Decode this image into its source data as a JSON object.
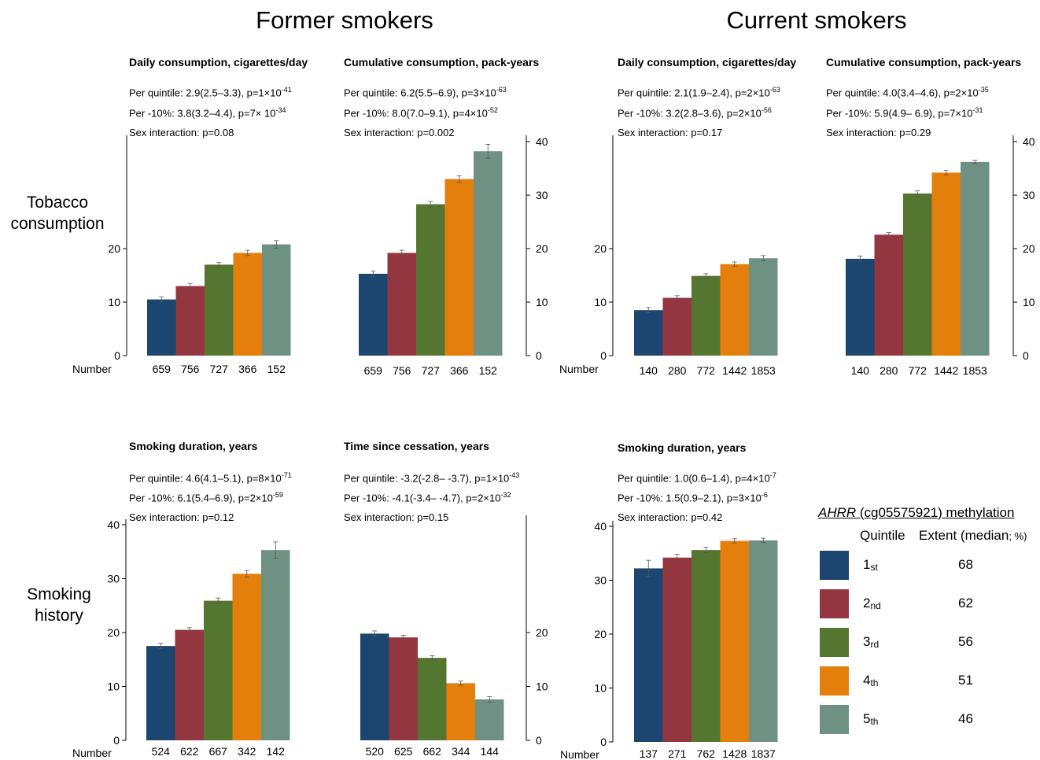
{
  "titles": {
    "former": "Former smokers",
    "current": "Current smokers"
  },
  "row_labels": {
    "tobacco": [
      "Tobacco",
      "consumption"
    ],
    "history": [
      "Smoking",
      "history"
    ]
  },
  "number_label": "Number",
  "colors": {
    "q1": "#1c4670",
    "q2": "#943640",
    "q3": "#557630",
    "q4": "#e47f0c",
    "q5": "#6f9184"
  },
  "panels": [
    {
      "id": "p1",
      "title": "Daily consumption, cigarettes/day",
      "stats": {
        "quintile": "Per quintile: 2.9(2.5–3.3), p=1×10",
        "quintile_exp": "-41",
        "pct": "Per -10%: 3.8(3.2–4.4), p=7× 10",
        "pct_exp": "-34",
        "sex": "Sex interaction: p=0.08"
      }
    },
    {
      "id": "p2",
      "title": "Cumulative consumption, pack-years",
      "stats": {
        "quintile": "Per quintile: 6.2(5.5–6.9), p=3×10",
        "quintile_exp": "-63",
        "pct": "Per -10%: 8.0(7.0–9.1), p=4×10",
        "pct_exp": "-52",
        "sex": "Sex interaction: p=0.002"
      }
    },
    {
      "id": "p3",
      "title": "Daily consumption, cigarettes/day",
      "stats": {
        "quintile": "Per quintile: 2.1(1.9–2.4), p=2×10",
        "quintile_exp": "-63",
        "pct": "Per -10%: 3.2(2.8–3.6), p=2×10",
        "pct_exp": "-56",
        "sex": "Sex interaction: p=0.17"
      }
    },
    {
      "id": "p4",
      "title": "Cumulative consumption, pack-years",
      "stats": {
        "quintile": "Per quintile: 4.0(3.4–4.6), p=2×10",
        "quintile_exp": "-35",
        "pct": "Per -10%: 5.9(4.9– 6.9), p=7×10",
        "pct_exp": "-31",
        "sex": "Sex interaction: p=0.29"
      }
    },
    {
      "id": "p5",
      "title": "Smoking duration, years",
      "stats": {
        "quintile": "Per quintile: 4.6(4.1–5.1), p=8×10",
        "quintile_exp": "-71",
        "pct": "Per -10%: 6.1(5.4–6.9), p=2×10",
        "pct_exp": "-59",
        "sex": "Sex interaction: p=0.12"
      }
    },
    {
      "id": "p6",
      "title": "Time since cessation, years",
      "stats": {
        "quintile": "Per quintile: -3.2(-2.8– -3.7), p=1×10",
        "quintile_exp": "-43",
        "pct": "Per -10%: -4.1(-3.4– -4.7), p=2×10",
        "pct_exp": "-32",
        "sex": "Sex interaction: p=0.15"
      }
    },
    {
      "id": "p7",
      "title": "Smoking duration, years",
      "stats": {
        "quintile": "Per quintile: 1.0(0.6–1.4), p=4×10",
        "quintile_exp": "-7",
        "pct": "Per -10%: 1.5(0.9–2.1), p=3×10",
        "pct_exp": "-6",
        "sex": "Sex interaction: p=0.42"
      }
    }
  ],
  "legend": {
    "title_italic": "AHRR",
    "title_rest": " (cg05575921) methylation",
    "col_quintile": "Quintile",
    "col_extent": "Extent (median",
    "col_extent_small": "; %)",
    "items": [
      {
        "num": "1",
        "suffix": "st",
        "value": "68"
      },
      {
        "num": "2",
        "suffix": "nd",
        "value": "62"
      },
      {
        "num": "3",
        "suffix": "rd",
        "value": "56"
      },
      {
        "num": "4",
        "suffix": "th",
        "value": "51"
      },
      {
        "num": "5",
        "suffix": "th",
        "value": "46"
      }
    ]
  },
  "chart_data": [
    {
      "type": "bar",
      "panel": "p1",
      "categories": [
        "1st",
        "2nd",
        "3rd",
        "4th",
        "5th"
      ],
      "values": [
        10.5,
        13.0,
        17.0,
        19.2,
        20.8
      ],
      "errors": [
        0.5,
        0.5,
        0.4,
        0.5,
        0.7
      ],
      "numbers": [
        "659",
        "756",
        "727",
        "366",
        "152"
      ],
      "ylim": [
        0,
        40
      ],
      "yticks": [
        0,
        10,
        20
      ],
      "yaxis": "left"
    },
    {
      "type": "bar",
      "panel": "p2",
      "categories": [
        "1st",
        "2nd",
        "3rd",
        "4th",
        "5th"
      ],
      "values": [
        15.3,
        19.2,
        28.3,
        33.0,
        38.2
      ],
      "errors": [
        0.5,
        0.5,
        0.5,
        0.6,
        1.3
      ],
      "numbers": [
        "659",
        "756",
        "727",
        "366",
        "152"
      ],
      "ylim": [
        0,
        40
      ],
      "yticks": [
        0,
        10,
        20,
        30,
        40
      ],
      "yaxis": "right"
    },
    {
      "type": "bar",
      "panel": "p3",
      "categories": [
        "1st",
        "2nd",
        "3rd",
        "4th",
        "5th"
      ],
      "values": [
        8.5,
        10.8,
        14.9,
        17.1,
        18.2
      ],
      "errors": [
        0.5,
        0.4,
        0.4,
        0.4,
        0.5
      ],
      "numbers": [
        "140",
        "280",
        "772",
        "1442",
        "1853"
      ],
      "ylim": [
        0,
        40
      ],
      "yticks": [
        0,
        10,
        20
      ],
      "yaxis": "left"
    },
    {
      "type": "bar",
      "panel": "p4",
      "categories": [
        "1st",
        "2nd",
        "3rd",
        "4th",
        "5th"
      ],
      "values": [
        18.1,
        22.6,
        30.3,
        34.2,
        36.2
      ],
      "errors": [
        0.5,
        0.4,
        0.5,
        0.4,
        0.3
      ],
      "numbers": [
        "140",
        "280",
        "772",
        "1442",
        "1853"
      ],
      "ylim": [
        0,
        40
      ],
      "yticks": [
        0,
        10,
        20,
        30,
        40
      ],
      "yaxis": "right"
    },
    {
      "type": "bar",
      "panel": "p5",
      "categories": [
        "1st",
        "2nd",
        "3rd",
        "4th",
        "5th"
      ],
      "values": [
        17.5,
        20.5,
        25.9,
        30.9,
        35.3
      ],
      "errors": [
        0.5,
        0.4,
        0.5,
        0.6,
        1.5
      ],
      "numbers": [
        "524",
        "622",
        "667",
        "342",
        "142"
      ],
      "ylim": [
        0,
        40
      ],
      "yticks": [
        0,
        10,
        20,
        30,
        40
      ],
      "yaxis": "left"
    },
    {
      "type": "bar",
      "panel": "p6",
      "categories": [
        "1st",
        "2nd",
        "3rd",
        "4th",
        "5th"
      ],
      "values": [
        19.8,
        19.1,
        15.3,
        10.6,
        7.6
      ],
      "errors": [
        0.5,
        0.4,
        0.4,
        0.4,
        0.5
      ],
      "numbers": [
        "520",
        "625",
        "662",
        "344",
        "144"
      ],
      "ylim": [
        0,
        40
      ],
      "yticks": [
        0,
        10,
        20
      ],
      "yaxis": "right"
    },
    {
      "type": "bar",
      "panel": "p7",
      "categories": [
        "1st",
        "2nd",
        "3rd",
        "4th",
        "5th"
      ],
      "values": [
        32.2,
        34.2,
        35.6,
        37.3,
        37.4
      ],
      "errors": [
        1.5,
        0.6,
        0.5,
        0.4,
        0.4
      ],
      "numbers": [
        "137",
        "271",
        "762",
        "1428",
        "1837"
      ],
      "ylim": [
        0,
        40
      ],
      "yticks": [
        0,
        10,
        20,
        30,
        40
      ],
      "yaxis": "left"
    }
  ]
}
